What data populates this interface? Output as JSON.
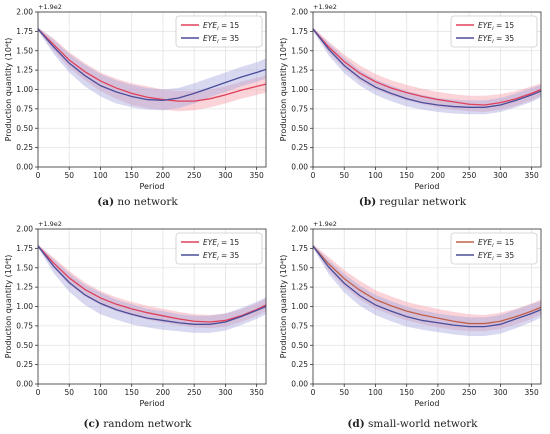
{
  "figure": {
    "captions": [
      {
        "letter": "(a)",
        "text": "no network"
      },
      {
        "letter": "(b)",
        "text": "regular network"
      },
      {
        "letter": "(c)",
        "text": "random network"
      },
      {
        "letter": "(d)",
        "text": "small-world network"
      }
    ]
  },
  "chart_data": [
    {
      "type": "line",
      "panel": "(a)",
      "xlabel": "Period",
      "ylabel": "Production quantity (10⁴t)",
      "offset_label": "+1.9e2",
      "xlim": [
        0,
        365
      ],
      "ylim": [
        0,
        2.0
      ],
      "xticks": [
        0,
        50,
        100,
        150,
        200,
        250,
        300,
        350
      ],
      "yticks": [
        "0.00",
        "0.25",
        "0.50",
        "0.75",
        "1.00",
        "1.25",
        "1.50",
        "1.75",
        "2.00"
      ],
      "grid": true,
      "legend_position": "top-right",
      "x": [
        0,
        25,
        50,
        75,
        100,
        125,
        150,
        175,
        200,
        225,
        250,
        275,
        300,
        325,
        350,
        365
      ],
      "series": [
        {
          "name": "EYE_i = 15",
          "color": "#e0405a",
          "band_color": "#f3a0aa",
          "values": [
            1.78,
            1.58,
            1.38,
            1.23,
            1.11,
            1.02,
            0.95,
            0.9,
            0.87,
            0.85,
            0.85,
            0.88,
            0.93,
            0.99,
            1.04,
            1.07
          ],
          "lower": [
            1.76,
            1.5,
            1.28,
            1.12,
            0.98,
            0.88,
            0.8,
            0.76,
            0.74,
            0.72,
            0.73,
            0.77,
            0.82,
            0.88,
            0.93,
            0.96
          ],
          "upper": [
            1.8,
            1.66,
            1.48,
            1.34,
            1.22,
            1.14,
            1.08,
            1.04,
            1.0,
            0.98,
            0.98,
            1.0,
            1.04,
            1.1,
            1.15,
            1.18
          ]
        },
        {
          "name": "EYE_i = 35",
          "color": "#4a4d9a",
          "band_color": "#a8a8e0",
          "values": [
            1.78,
            1.55,
            1.34,
            1.18,
            1.05,
            0.97,
            0.91,
            0.87,
            0.86,
            0.89,
            0.95,
            1.02,
            1.09,
            1.16,
            1.22,
            1.26
          ],
          "lower": [
            1.76,
            1.46,
            1.22,
            1.04,
            0.91,
            0.82,
            0.77,
            0.74,
            0.73,
            0.76,
            0.82,
            0.9,
            0.97,
            1.04,
            1.1,
            1.14
          ],
          "upper": [
            1.8,
            1.64,
            1.46,
            1.32,
            1.2,
            1.12,
            1.06,
            1.02,
            1.0,
            1.02,
            1.08,
            1.15,
            1.22,
            1.29,
            1.35,
            1.4
          ]
        }
      ]
    },
    {
      "type": "line",
      "panel": "(b)",
      "xlabel": "Period",
      "ylabel": "Production quantity (10⁴t)",
      "offset_label": "+1.9e2",
      "xlim": [
        0,
        365
      ],
      "ylim": [
        0,
        2.0
      ],
      "xticks": [
        0,
        50,
        100,
        150,
        200,
        250,
        300,
        350
      ],
      "yticks": [
        "0.00",
        "0.25",
        "0.50",
        "0.75",
        "1.00",
        "1.25",
        "1.50",
        "1.75",
        "2.00"
      ],
      "grid": true,
      "legend_position": "top-right",
      "x": [
        0,
        25,
        50,
        75,
        100,
        125,
        150,
        175,
        200,
        225,
        250,
        275,
        300,
        325,
        350,
        365
      ],
      "series": [
        {
          "name": "EYE_i = 15",
          "color": "#e0405a",
          "band_color": "#f3a0aa",
          "values": [
            1.78,
            1.55,
            1.36,
            1.21,
            1.1,
            1.02,
            0.96,
            0.91,
            0.87,
            0.84,
            0.81,
            0.8,
            0.83,
            0.88,
            0.95,
            1.0
          ],
          "lower": [
            1.76,
            1.48,
            1.27,
            1.11,
            1.0,
            0.92,
            0.86,
            0.81,
            0.77,
            0.74,
            0.72,
            0.71,
            0.74,
            0.79,
            0.86,
            0.92
          ],
          "upper": [
            1.8,
            1.62,
            1.45,
            1.31,
            1.2,
            1.12,
            1.06,
            1.01,
            0.97,
            0.94,
            0.92,
            0.92,
            0.94,
            0.98,
            1.04,
            1.08
          ]
        },
        {
          "name": "EYE_i = 35",
          "color": "#4a4d9a",
          "band_color": "#a8a8e0",
          "values": [
            1.78,
            1.52,
            1.31,
            1.15,
            1.03,
            0.95,
            0.88,
            0.83,
            0.8,
            0.78,
            0.77,
            0.77,
            0.8,
            0.86,
            0.93,
            0.98
          ],
          "lower": [
            1.76,
            1.44,
            1.21,
            1.05,
            0.93,
            0.85,
            0.78,
            0.74,
            0.71,
            0.69,
            0.68,
            0.68,
            0.71,
            0.77,
            0.84,
            0.9
          ],
          "upper": [
            1.8,
            1.6,
            1.41,
            1.25,
            1.13,
            1.05,
            0.98,
            0.93,
            0.89,
            0.87,
            0.86,
            0.86,
            0.89,
            0.95,
            1.02,
            1.06
          ]
        }
      ]
    },
    {
      "type": "line",
      "panel": "(c)",
      "xlabel": "Period",
      "ylabel": "Production quantity (10⁴t)",
      "offset_label": "+1.9e2",
      "xlim": [
        0,
        365
      ],
      "ylim": [
        0,
        2.0
      ],
      "xticks": [
        0,
        50,
        100,
        150,
        200,
        250,
        300,
        350
      ],
      "yticks": [
        "0.00",
        "0.25",
        "0.50",
        "0.75",
        "1.00",
        "1.25",
        "1.50",
        "1.75",
        "2.00"
      ],
      "grid": true,
      "legend_position": "top-right",
      "x": [
        0,
        25,
        50,
        75,
        100,
        125,
        150,
        175,
        200,
        225,
        250,
        275,
        300,
        325,
        350,
        365
      ],
      "series": [
        {
          "name": "EYE_i = 15",
          "color": "#e0405a",
          "band_color": "#f3a0aa",
          "values": [
            1.78,
            1.56,
            1.37,
            1.22,
            1.11,
            1.03,
            0.97,
            0.92,
            0.88,
            0.84,
            0.81,
            0.8,
            0.82,
            0.88,
            0.96,
            1.02
          ],
          "lower": [
            1.76,
            1.49,
            1.28,
            1.13,
            1.02,
            0.94,
            0.88,
            0.83,
            0.79,
            0.76,
            0.73,
            0.72,
            0.74,
            0.8,
            0.88,
            0.94
          ],
          "upper": [
            1.8,
            1.63,
            1.46,
            1.31,
            1.2,
            1.12,
            1.06,
            1.01,
            0.97,
            0.93,
            0.9,
            0.89,
            0.91,
            0.96,
            1.04,
            1.1
          ]
        },
        {
          "name": "EYE_i = 35",
          "color": "#4a4d9a",
          "band_color": "#a8a8e0",
          "values": [
            1.78,
            1.52,
            1.31,
            1.15,
            1.04,
            0.96,
            0.9,
            0.85,
            0.82,
            0.79,
            0.77,
            0.77,
            0.8,
            0.87,
            0.95,
            1.0
          ],
          "lower": [
            1.76,
            1.43,
            1.19,
            1.02,
            0.9,
            0.83,
            0.77,
            0.73,
            0.7,
            0.68,
            0.66,
            0.66,
            0.69,
            0.76,
            0.84,
            0.9
          ],
          "upper": [
            1.8,
            1.61,
            1.43,
            1.28,
            1.18,
            1.09,
            1.03,
            0.97,
            0.94,
            0.9,
            0.88,
            0.88,
            0.91,
            0.98,
            1.06,
            1.12
          ]
        }
      ]
    },
    {
      "type": "line",
      "panel": "(d)",
      "xlabel": "Period",
      "ylabel": "Production quantity (10⁴t)",
      "offset_label": "+1.9e2",
      "xlim": [
        0,
        365
      ],
      "ylim": [
        0,
        2.0
      ],
      "xticks": [
        0,
        50,
        100,
        150,
        200,
        250,
        300,
        350
      ],
      "yticks": [
        "0.00",
        "0.25",
        "0.50",
        "0.75",
        "1.00",
        "1.25",
        "1.50",
        "1.75",
        "2.00"
      ],
      "grid": true,
      "legend_position": "top-right",
      "x": [
        0,
        25,
        50,
        75,
        100,
        125,
        150,
        175,
        200,
        225,
        250,
        275,
        300,
        325,
        350,
        365
      ],
      "series": [
        {
          "name": "EYE_i = 15",
          "color": "#c0604a",
          "band_color": "#f3a0aa",
          "values": [
            1.78,
            1.55,
            1.36,
            1.21,
            1.09,
            1.01,
            0.94,
            0.89,
            0.85,
            0.81,
            0.78,
            0.78,
            0.81,
            0.87,
            0.94,
            0.99
          ],
          "lower": [
            1.76,
            1.46,
            1.25,
            1.09,
            0.97,
            0.89,
            0.82,
            0.77,
            0.73,
            0.7,
            0.68,
            0.68,
            0.71,
            0.77,
            0.84,
            0.9
          ],
          "upper": [
            1.8,
            1.64,
            1.47,
            1.33,
            1.21,
            1.13,
            1.06,
            1.01,
            0.97,
            0.93,
            0.9,
            0.89,
            0.92,
            0.97,
            1.04,
            1.09
          ]
        },
        {
          "name": "EYE_i = 35",
          "color": "#4a4d9a",
          "band_color": "#a8a8e0",
          "values": [
            1.78,
            1.51,
            1.3,
            1.14,
            1.02,
            0.94,
            0.87,
            0.82,
            0.79,
            0.76,
            0.74,
            0.74,
            0.77,
            0.84,
            0.91,
            0.96
          ],
          "lower": [
            1.76,
            1.42,
            1.18,
            1.01,
            0.89,
            0.81,
            0.74,
            0.7,
            0.67,
            0.64,
            0.62,
            0.62,
            0.65,
            0.72,
            0.8,
            0.86
          ],
          "upper": [
            1.8,
            1.6,
            1.42,
            1.27,
            1.15,
            1.07,
            1.0,
            0.95,
            0.91,
            0.88,
            0.86,
            0.86,
            0.89,
            0.96,
            1.03,
            1.07
          ]
        }
      ]
    }
  ]
}
